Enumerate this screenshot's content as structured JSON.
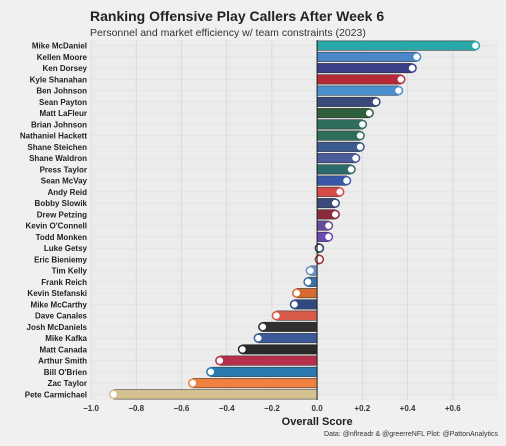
{
  "chart_data": {
    "type": "bar",
    "orientation": "horizontal",
    "title": "Ranking Offensive Play Callers After Week 6",
    "subtitle": "Personnel and market efficiency w/ team constraints (2023)",
    "xlabel": "Overall Score",
    "ylabel": "",
    "caption": "Data: @nflreadr & @greerreNFL Plot: @PattonAnalytics",
    "xlim": [
      -1.0,
      0.8
    ],
    "xticks": [
      {
        "value": -1.0,
        "label": "−1.0"
      },
      {
        "value": -0.8,
        "label": "−0.8"
      },
      {
        "value": -0.6,
        "label": "−0.6"
      },
      {
        "value": -0.4,
        "label": "−0.4"
      },
      {
        "value": -0.2,
        "label": "−0.2"
      },
      {
        "value": 0.0,
        "label": "0.0"
      },
      {
        "value": 0.2,
        "label": "+0.2"
      },
      {
        "value": 0.4,
        "label": "+0.4"
      },
      {
        "value": 0.6,
        "label": "+0.6"
      }
    ],
    "grid": true,
    "categories": [
      "Mike McDaniel",
      "Kellen Moore",
      "Ken Dorsey",
      "Kyle Shanahan",
      "Ben Johnson",
      "Sean Payton",
      "Matt LaFleur",
      "Brian Johnson",
      "Nathaniel Hackett",
      "Shane Steichen",
      "Shane Waldron",
      "Press Taylor",
      "Sean McVay",
      "Andy Reid",
      "Bobby Slowik",
      "Drew Petzing",
      "Kevin O'Connell",
      "Todd Monken",
      "Luke Getsy",
      "Eric Bieniemy",
      "Tim Kelly",
      "Frank Reich",
      "Kevin Stefanski",
      "Mike McCarthy",
      "Dave Canales",
      "Josh McDaniels",
      "Mike Kafka",
      "Matt Canada",
      "Arthur Smith",
      "Bill O'Brien",
      "Zac Taylor",
      "Pete Carmichael"
    ],
    "values": [
      0.7,
      0.44,
      0.42,
      0.37,
      0.36,
      0.26,
      0.23,
      0.2,
      0.19,
      0.19,
      0.17,
      0.15,
      0.13,
      0.1,
      0.08,
      0.08,
      0.05,
      0.05,
      0.01,
      0.01,
      -0.03,
      -0.04,
      -0.09,
      -0.1,
      -0.18,
      -0.24,
      -0.26,
      -0.33,
      -0.43,
      -0.47,
      -0.55,
      -0.9
    ],
    "bar_colors": [
      "#2aa8a8",
      "#4a86c8",
      "#3b3f8c",
      "#b52a36",
      "#4a8fd0",
      "#3a4a7a",
      "#2f5f3a",
      "#2f6e5f",
      "#2f6e5a",
      "#3a5a90",
      "#4a5a9a",
      "#2a6a6a",
      "#3a58a8",
      "#d64a48",
      "#3a4a7a",
      "#8a2a3a",
      "#6a4a9a",
      "#6a4ab0",
      "#2a3a5a",
      "#a0303a",
      "#6a90c8",
      "#3a70a8",
      "#d86a30",
      "#304a80",
      "#d85a4a",
      "#303030",
      "#3a5a9a",
      "#2a2a2a",
      "#b5304a",
      "#2a7ab0",
      "#f08040",
      "#d4c090"
    ]
  }
}
